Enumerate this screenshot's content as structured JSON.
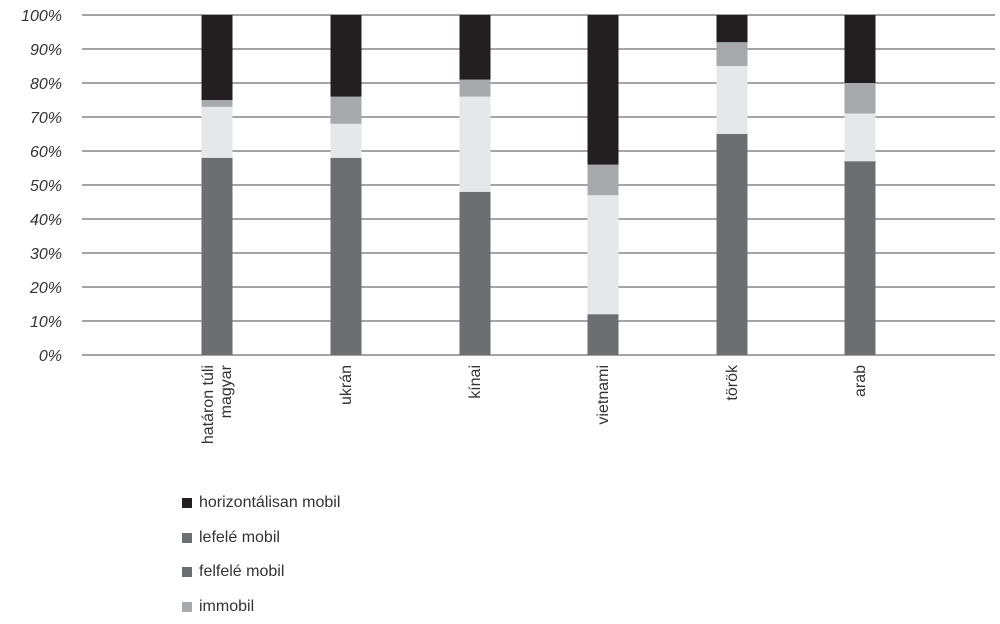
{
  "chart_data": {
    "type": "bar",
    "stacked": true,
    "categories": [
      "határon túli\nmagyar",
      "ukrán",
      "kínai",
      "vietnami",
      "török",
      "arab"
    ],
    "series": [
      {
        "name": "felfelé mobil",
        "color": "#6d6e71",
        "values": [
          58,
          58,
          48,
          12,
          65,
          57
        ]
      },
      {
        "name": "",
        "color": "#e6e7e8",
        "values": [
          15,
          10,
          28,
          35,
          20,
          14
        ]
      },
      {
        "name": "immobil",
        "color": "#a7a9ac",
        "values": [
          2,
          8,
          5,
          9,
          7,
          9
        ]
      },
      {
        "name": "horizontálisan mobil",
        "color": "#231f20",
        "values": [
          25,
          24,
          19,
          44,
          8,
          20
        ]
      }
    ],
    "y_ticks": [
      "0%",
      "10%",
      "20%",
      "30%",
      "40%",
      "50%",
      "60%",
      "70%",
      "80%",
      "90%",
      "100%"
    ],
    "ylim": [
      0,
      100
    ],
    "grid": true,
    "legend": {
      "position": "bottom-left",
      "entries": [
        {
          "label": "horizontálisan mobil",
          "color": "#231f20"
        },
        {
          "label": "lefelé mobil",
          "color": "#6d6e71"
        },
        {
          "label": "felfelé mobil",
          "color": "#6d6e71"
        },
        {
          "label": "immobil",
          "color": "#a7a9ac"
        }
      ]
    }
  }
}
